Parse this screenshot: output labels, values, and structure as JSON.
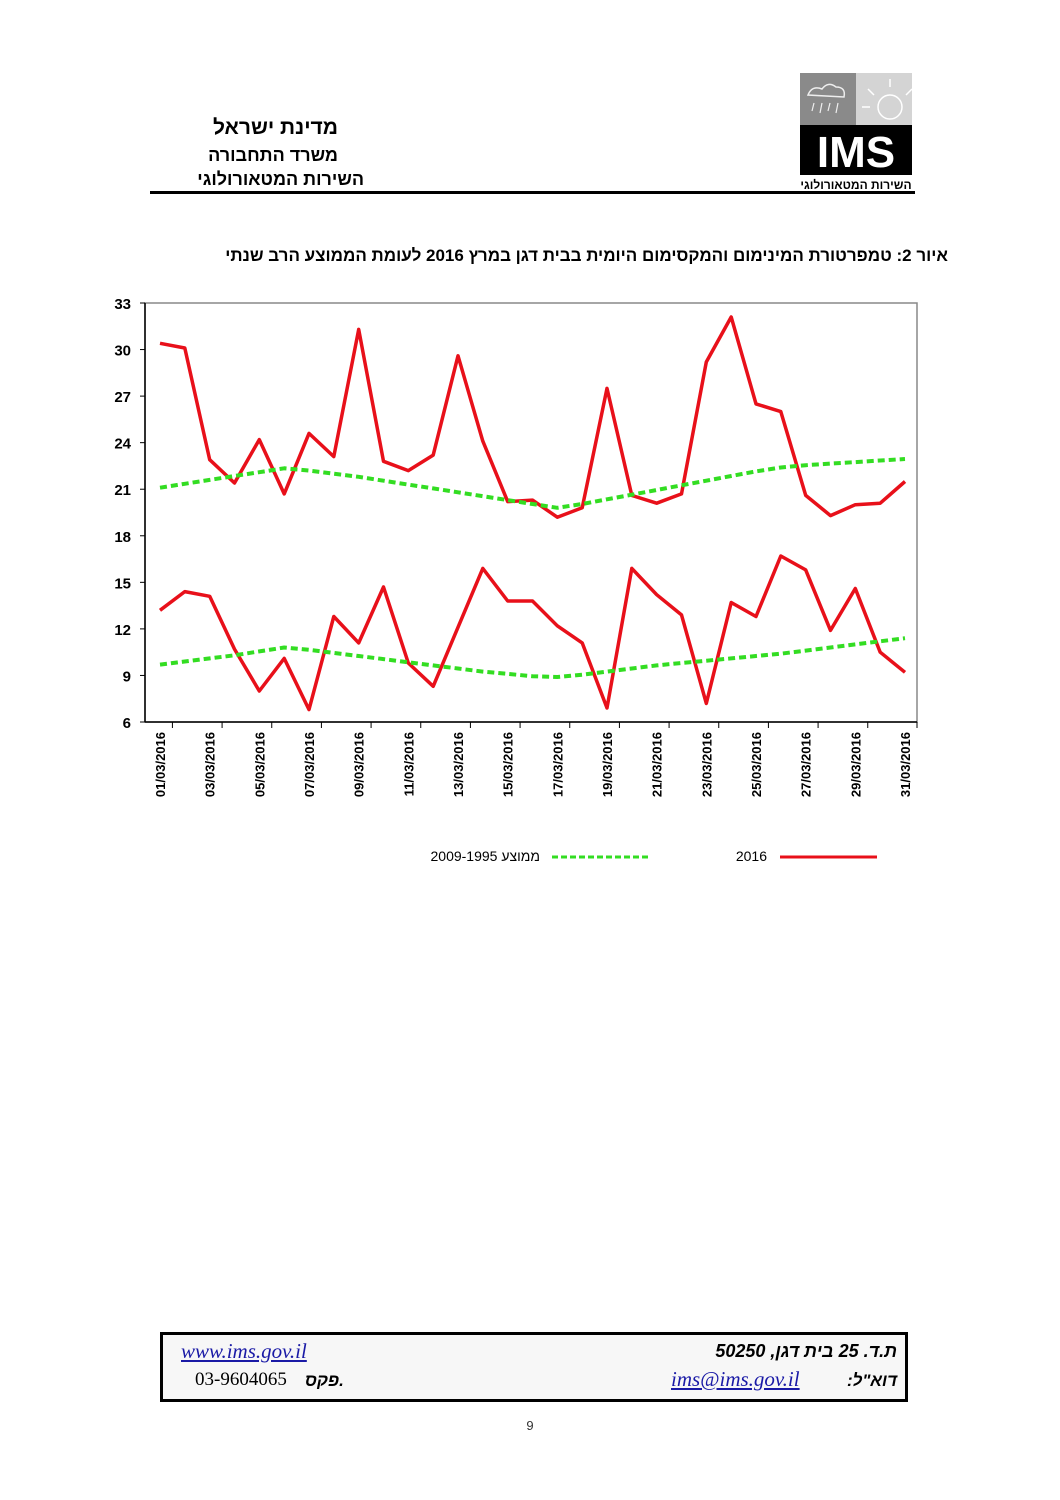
{
  "header": {
    "line1": "מדינת ישראל",
    "line2": "משרד התחבורה",
    "line3": "השירות המטאורולוגי"
  },
  "logo": {
    "text": "IMS",
    "subtitle": "השירות המטאורולוגי"
  },
  "chart_data": {
    "type": "line",
    "title": "איור 2: טמפרטורת המינימום והמקסימום היומית בבית דגן במרץ 2016 לעומת הממוצע הרב שנתי",
    "xlabel": "",
    "ylabel": "",
    "ylim": [
      6,
      33
    ],
    "yticks": [
      "6",
      "9",
      "12",
      "15",
      "18",
      "21",
      "24",
      "27",
      "30",
      "33"
    ],
    "x": [
      "01/03/2016",
      "02/03/2016",
      "03/03/2016",
      "04/03/2016",
      "05/03/2016",
      "06/03/2016",
      "07/03/2016",
      "08/03/2016",
      "09/03/2016",
      "10/03/2016",
      "11/03/2016",
      "12/03/2016",
      "13/03/2016",
      "14/03/2016",
      "15/03/2016",
      "16/03/2016",
      "17/03/2016",
      "18/03/2016",
      "19/03/2016",
      "20/03/2016",
      "21/03/2016",
      "22/03/2016",
      "23/03/2016",
      "24/03/2016",
      "25/03/2016",
      "26/03/2016",
      "27/03/2016",
      "28/03/2016",
      "29/03/2016",
      "30/03/2016",
      "31/03/2016"
    ],
    "xtick_labels": [
      "01/03/2016",
      "03/03/2016",
      "05/03/2016",
      "07/03/2016",
      "09/03/2016",
      "11/03/2016",
      "13/03/2016",
      "15/03/2016",
      "17/03/2016",
      "19/03/2016",
      "21/03/2016",
      "23/03/2016",
      "25/03/2016",
      "27/03/2016",
      "29/03/2016",
      "31/03/2016"
    ],
    "grid": false,
    "legend_position": "bottom",
    "series": [
      {
        "name": "2016 max",
        "legend": "2016",
        "color": "#e8101a",
        "style": "solid",
        "values": [
          30.4,
          30.1,
          22.9,
          21.4,
          24.2,
          20.7,
          24.6,
          23.1,
          31.3,
          22.8,
          22.2,
          23.2,
          29.6,
          24.1,
          20.2,
          20.3,
          19.2,
          19.8,
          27.5,
          20.6,
          20.1,
          20.7,
          29.2,
          32.1,
          26.5,
          26.0,
          20.6,
          19.3,
          20.0,
          20.1,
          21.5
        ]
      },
      {
        "name": "2016 min",
        "legend": "2016",
        "color": "#e8101a",
        "style": "solid",
        "values": [
          13.2,
          14.4,
          14.1,
          10.7,
          8.0,
          10.1,
          6.8,
          12.8,
          11.1,
          14.7,
          9.8,
          8.3,
          12.1,
          15.9,
          13.8,
          13.8,
          12.2,
          11.1,
          6.9,
          15.9,
          14.2,
          12.9,
          7.2,
          13.7,
          12.8,
          16.7,
          15.8,
          11.9,
          14.6,
          10.5,
          9.2
        ]
      },
      {
        "name": "avg max 1995-2009",
        "legend": "ממוצע 1995-2009",
        "color": "#33dd22",
        "style": "dashed",
        "values": [
          21.1,
          21.35,
          21.6,
          21.85,
          22.1,
          22.35,
          22.2,
          22.0,
          21.8,
          21.55,
          21.3,
          21.05,
          20.8,
          20.55,
          20.3,
          20.05,
          19.8,
          20.05,
          20.35,
          20.65,
          20.95,
          21.25,
          21.55,
          21.85,
          22.15,
          22.4,
          22.55,
          22.65,
          22.75,
          22.85,
          22.95
        ]
      },
      {
        "name": "avg min 1995-2009",
        "legend": "ממוצע 1995-2009",
        "color": "#33dd22",
        "style": "dashed",
        "values": [
          9.7,
          9.9,
          10.1,
          10.3,
          10.55,
          10.8,
          10.65,
          10.45,
          10.25,
          10.05,
          9.85,
          9.65,
          9.45,
          9.25,
          9.1,
          8.95,
          8.9,
          9.05,
          9.25,
          9.45,
          9.65,
          9.8,
          9.95,
          10.1,
          10.25,
          10.4,
          10.6,
          10.8,
          11.0,
          11.2,
          11.4
        ]
      }
    ],
    "legend": {
      "avg": "2009-1995 ממוצע",
      "current": "2016"
    }
  },
  "footer": {
    "website": "www.ims.gov.il",
    "address": "ת.ד. 25 בית דגן, 50250",
    "fax_label": "פקס.",
    "fax": "03-9604065",
    "email_label": "דוא\"ל:",
    "email": "ims@ims.gov.il"
  },
  "page_number": "9"
}
